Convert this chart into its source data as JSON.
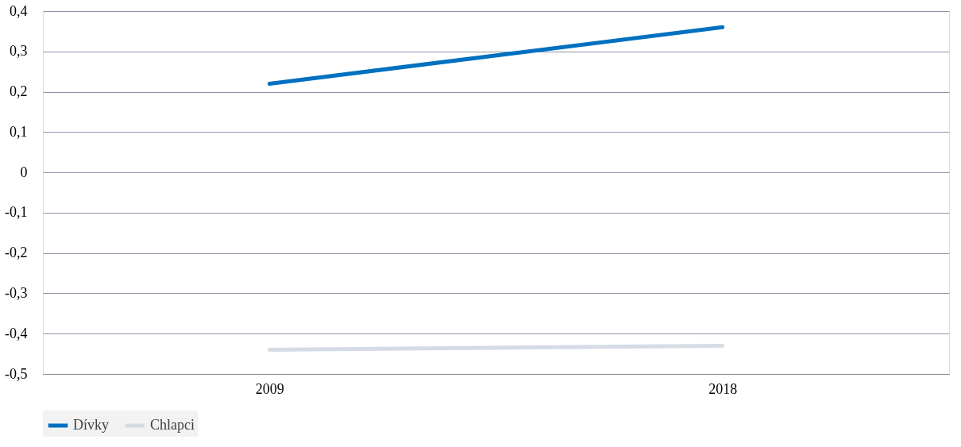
{
  "chart_data": {
    "type": "line",
    "categories": [
      "2009",
      "2018"
    ],
    "series": [
      {
        "name": "Dívky",
        "color": "#0070c0",
        "values": [
          0.22,
          0.36
        ]
      },
      {
        "name": "Chlapci",
        "color": "#d6dce5",
        "values": [
          -0.44,
          -0.43
        ]
      }
    ],
    "ylim": [
      -0.5,
      0.4
    ],
    "yticks": [
      {
        "value": -0.5,
        "label": "-0,5"
      },
      {
        "value": -0.4,
        "label": "-0,4"
      },
      {
        "value": -0.3,
        "label": "-0,3"
      },
      {
        "value": -0.2,
        "label": "-0,2"
      },
      {
        "value": -0.1,
        "label": "-0,1"
      },
      0,
      {
        "value": 0.1,
        "label": "0,1"
      },
      {
        "value": 0.2,
        "label": "0,2"
      },
      {
        "value": 0.3,
        "label": "0,3"
      },
      {
        "value": 0.4,
        "label": "0,4"
      }
    ],
    "grid": "y",
    "legend": "bottom",
    "marker": "none",
    "line_style": "solid"
  }
}
